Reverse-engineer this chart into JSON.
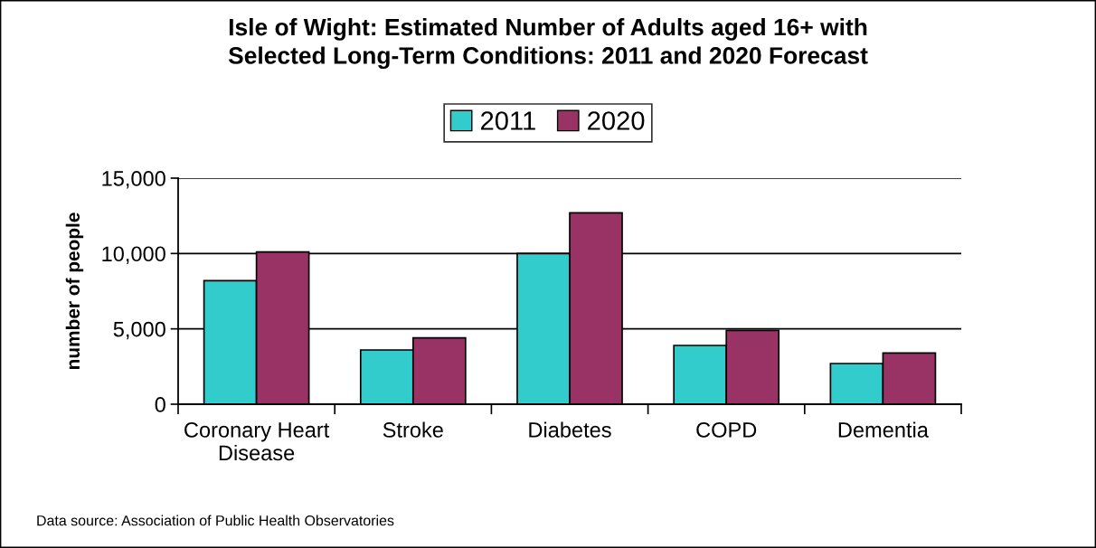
{
  "chart_data": {
    "type": "bar",
    "title": "Isle of Wight: Estimated Number of Adults aged 16+ with\nSelected Long-Term Conditions: 2011 and 2020 Forecast",
    "ylabel": "number of people",
    "categories": [
      "Coronary Heart\nDisease",
      "Stroke",
      "Diabetes",
      "COPD",
      "Dementia"
    ],
    "series": [
      {
        "name": "2011",
        "color": "#33cccc",
        "values": [
          8200,
          3600,
          10000,
          3900,
          2700
        ]
      },
      {
        "name": "2020",
        "color": "#993366",
        "values": [
          10100,
          4400,
          12700,
          4900,
          3400
        ]
      }
    ],
    "ylim": [
      0,
      15000
    ],
    "yticks": [
      0,
      {
        "value": 5000,
        "label": "5,000"
      },
      {
        "value": 10000,
        "label": "10,000"
      },
      {
        "value": 15000,
        "label": "15,000"
      }
    ],
    "grid": "y",
    "legend": "top",
    "annotations": [
      "Data source: Association of Public Health Observatories"
    ]
  }
}
